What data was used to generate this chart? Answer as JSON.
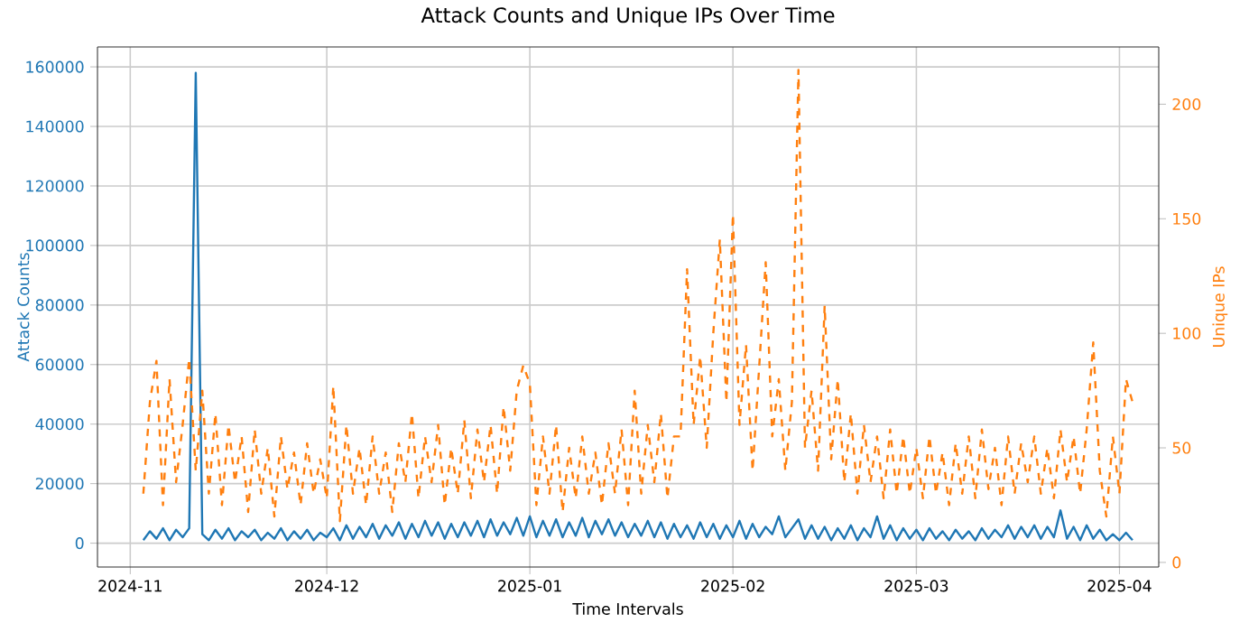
{
  "chart_data": {
    "type": "line",
    "title": "Attack Counts and Unique IPs Over Time",
    "xlabel": "Time Intervals",
    "ylabel": "Attack Counts",
    "y2label": "Unique IPs",
    "x": [
      "2024-11-03",
      "2024-11-04",
      "2024-11-05",
      "2024-11-06",
      "2024-11-07",
      "2024-11-08",
      "2024-11-09",
      "2024-11-10",
      "2024-11-11",
      "2024-11-12",
      "2024-11-13",
      "2024-11-14",
      "2024-11-15",
      "2024-11-16",
      "2024-11-17",
      "2024-11-18",
      "2024-11-19",
      "2024-11-20",
      "2024-11-21",
      "2024-11-22",
      "2024-11-23",
      "2024-11-24",
      "2024-11-25",
      "2024-11-26",
      "2024-11-27",
      "2024-11-28",
      "2024-11-29",
      "2024-11-30",
      "2024-12-01",
      "2024-12-02",
      "2024-12-03",
      "2024-12-04",
      "2024-12-05",
      "2024-12-06",
      "2024-12-07",
      "2024-12-08",
      "2024-12-09",
      "2024-12-10",
      "2024-12-11",
      "2024-12-12",
      "2024-12-13",
      "2024-12-14",
      "2024-12-15",
      "2024-12-16",
      "2024-12-17",
      "2024-12-18",
      "2024-12-19",
      "2024-12-20",
      "2024-12-21",
      "2024-12-22",
      "2024-12-23",
      "2024-12-24",
      "2024-12-25",
      "2024-12-26",
      "2024-12-27",
      "2024-12-28",
      "2024-12-29",
      "2024-12-30",
      "2024-12-31",
      "2025-01-01",
      "2025-01-02",
      "2025-01-03",
      "2025-01-04",
      "2025-01-05",
      "2025-01-06",
      "2025-01-07",
      "2025-01-08",
      "2025-01-09",
      "2025-01-10",
      "2025-01-11",
      "2025-01-12",
      "2025-01-13",
      "2025-01-14",
      "2025-01-15",
      "2025-01-16",
      "2025-01-17",
      "2025-01-18",
      "2025-01-19",
      "2025-01-20",
      "2025-01-21",
      "2025-01-22",
      "2025-01-23",
      "2025-01-24",
      "2025-01-25",
      "2025-01-26",
      "2025-01-27",
      "2025-01-28",
      "2025-01-29",
      "2025-01-30",
      "2025-01-31",
      "2025-02-01",
      "2025-02-02",
      "2025-02-03",
      "2025-02-04",
      "2025-02-05",
      "2025-02-06",
      "2025-02-07",
      "2025-02-08",
      "2025-02-09",
      "2025-02-10",
      "2025-02-11",
      "2025-02-12",
      "2025-02-13",
      "2025-02-14",
      "2025-02-15",
      "2025-02-16",
      "2025-02-17",
      "2025-02-18",
      "2025-02-19",
      "2025-02-20",
      "2025-02-21",
      "2025-02-22",
      "2025-02-23",
      "2025-02-24",
      "2025-02-25",
      "2025-02-26",
      "2025-02-27",
      "2025-02-28",
      "2025-03-01",
      "2025-03-02",
      "2025-03-03",
      "2025-03-04",
      "2025-03-05",
      "2025-03-06",
      "2025-03-07",
      "2025-03-08",
      "2025-03-09",
      "2025-03-10",
      "2025-03-11",
      "2025-03-12",
      "2025-03-13",
      "2025-03-14",
      "2025-03-15",
      "2025-03-16",
      "2025-03-17",
      "2025-03-18",
      "2025-03-19",
      "2025-03-20",
      "2025-03-21",
      "2025-03-22",
      "2025-03-23",
      "2025-03-24",
      "2025-03-25",
      "2025-03-26",
      "2025-03-27",
      "2025-03-28",
      "2025-03-29",
      "2025-03-30",
      "2025-03-31",
      "2025-04-01",
      "2025-04-02",
      "2025-04-03"
    ],
    "series": [
      {
        "name": null,
        "color": "#1f77b4",
        "axis": "y",
        "line_style": "solid",
        "values": [
          1000,
          4000,
          1500,
          5000,
          1000,
          4500,
          2000,
          5000,
          158000,
          3000,
          1000,
          4500,
          1500,
          5000,
          1000,
          4000,
          2000,
          4500,
          1000,
          3500,
          1500,
          5000,
          1000,
          4000,
          1500,
          4500,
          1000,
          3500,
          2000,
          5000,
          1000,
          6000,
          1500,
          5500,
          2000,
          6500,
          1500,
          6000,
          2500,
          7000,
          1500,
          6500,
          2000,
          7500,
          2500,
          7000,
          1500,
          6500,
          2000,
          7000,
          2500,
          7500,
          2000,
          8000,
          2500,
          7000,
          3000,
          8500,
          2500,
          9000,
          2000,
          7500,
          2500,
          8000,
          2000,
          7000,
          2500,
          8500,
          2000,
          7500,
          3000,
          8000,
          2500,
          7000,
          2000,
          6500,
          2500,
          7500,
          2000,
          7000,
          1500,
          6500,
          2000,
          6000,
          1500,
          7000,
          2000,
          6500,
          1500,
          6000,
          2000,
          7500,
          1500,
          6500,
          2000,
          5500,
          3000,
          9000,
          2000,
          5000,
          8000,
          1500,
          6000,
          1500,
          5500,
          1000,
          5000,
          1500,
          6000,
          1000,
          5000,
          2000,
          9000,
          1500,
          6000,
          1000,
          5000,
          1500,
          4500,
          1000,
          5000,
          1500,
          4000,
          1000,
          4500,
          1500,
          4000,
          1000,
          5000,
          1500,
          4500,
          2000,
          6000,
          1500,
          5500,
          2000,
          6000,
          1500,
          5500,
          2000,
          11000,
          1500,
          5500,
          1000,
          6000,
          1500,
          4500,
          1000,
          3000,
          1000,
          3500,
          1000
        ]
      },
      {
        "name": null,
        "color": "#ff7f0e",
        "axis": "y2",
        "line_style": "dashed",
        "values": [
          30,
          70,
          88,
          25,
          80,
          35,
          60,
          89,
          40,
          75,
          30,
          65,
          25,
          60,
          35,
          55,
          22,
          58,
          30,
          50,
          20,
          55,
          32,
          48,
          25,
          52,
          30,
          45,
          28,
          77,
          18,
          60,
          30,
          50,
          25,
          55,
          30,
          48,
          22,
          52,
          35,
          65,
          28,
          55,
          35,
          60,
          25,
          50,
          30,
          62,
          28,
          58,
          35,
          60,
          30,
          68,
          40,
          75,
          86,
          78,
          25,
          55,
          30,
          60,
          22,
          50,
          28,
          55,
          30,
          48,
          25,
          52,
          30,
          58,
          25,
          75,
          30,
          60,
          35,
          65,
          28,
          55,
          55,
          128,
          60,
          90,
          50,
          100,
          141,
          70,
          152,
          60,
          95,
          40,
          85,
          131,
          55,
          80,
          40,
          70,
          215,
          50,
          75,
          40,
          112,
          45,
          80,
          35,
          65,
          30,
          60,
          35,
          55,
          28,
          58,
          30,
          55,
          30,
          50,
          28,
          55,
          30,
          48,
          25,
          52,
          30,
          55,
          28,
          58,
          32,
          50,
          25,
          55,
          30,
          52,
          35,
          55,
          30,
          50,
          28,
          58,
          35,
          55,
          30,
          58,
          96,
          40,
          20,
          55,
          30,
          80,
          70
        ]
      }
    ],
    "xlim": [
      "2024-10-27",
      "2025-04-07"
    ],
    "xticks": [
      "2024-11",
      "2024-12",
      "2025-01",
      "2025-02",
      "2025-03",
      "2025-04"
    ],
    "ylim": [
      -8000,
      166700
    ],
    "yticks": [
      0,
      20000,
      40000,
      60000,
      80000,
      100000,
      120000,
      140000,
      160000
    ],
    "y2lim": [
      -2,
      225
    ],
    "y2ticks": [
      0,
      50,
      100,
      150,
      200
    ],
    "grid": true,
    "marker": "none"
  }
}
